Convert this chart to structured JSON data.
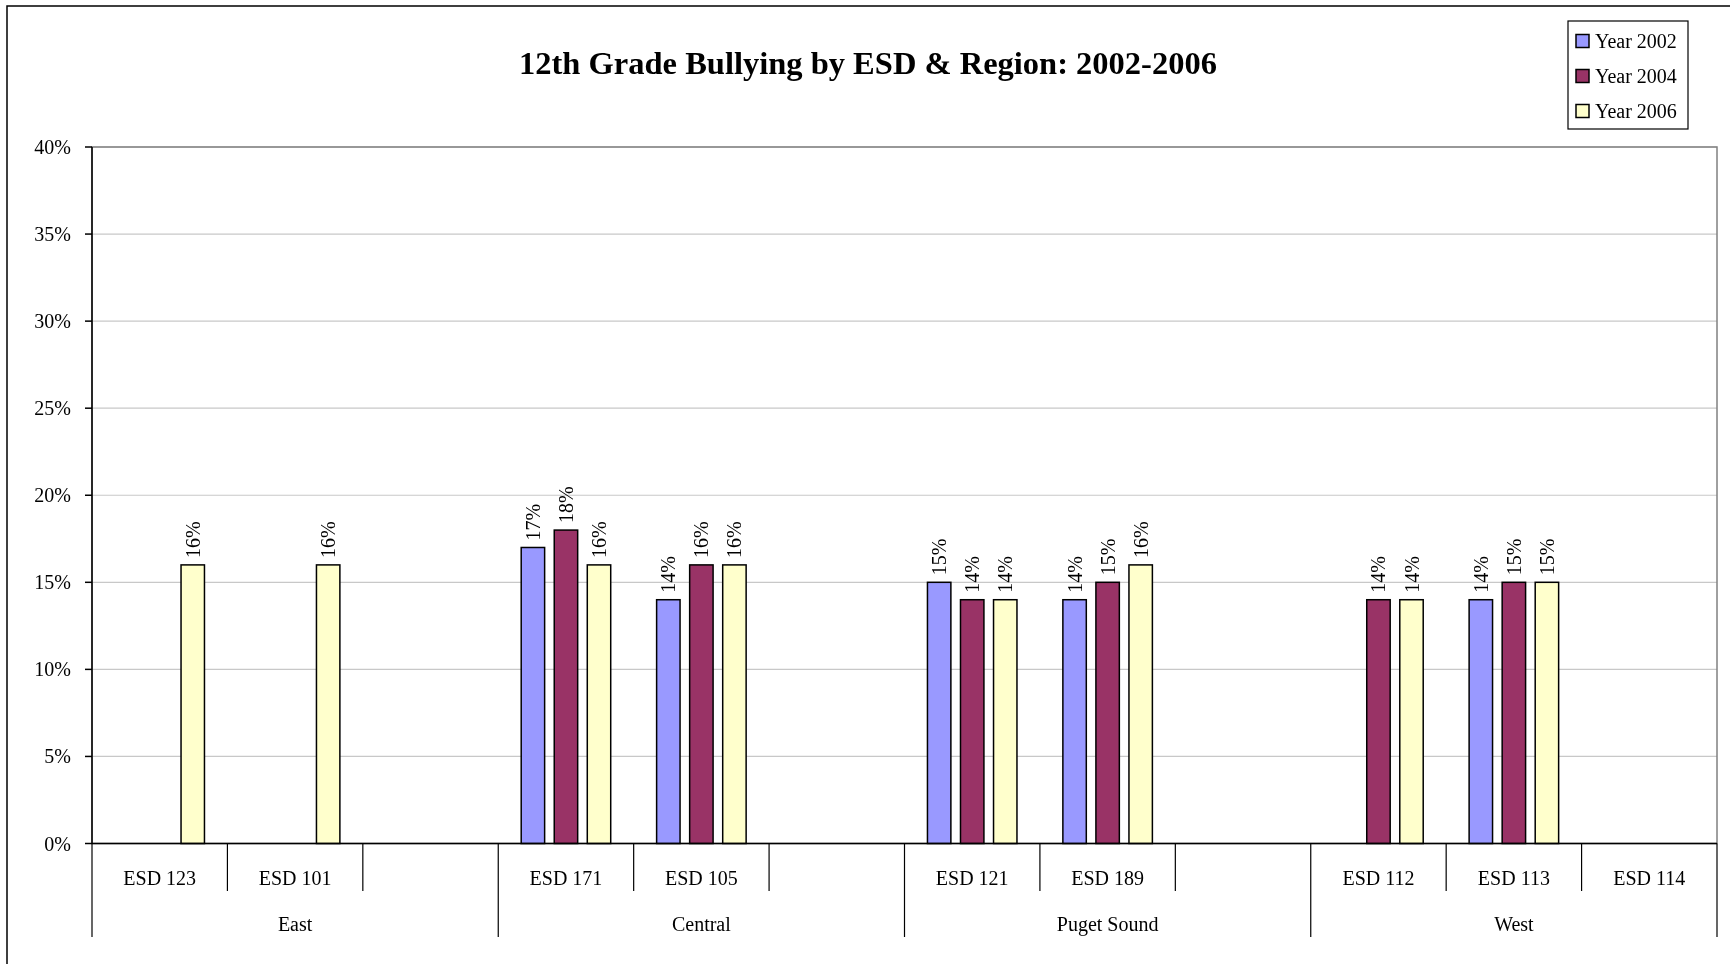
{
  "chart_data": {
    "type": "bar",
    "title": "12th Grade Bullying by ESD & Region: 2002-2006",
    "categories": [
      "ESD 123",
      "ESD 101",
      null,
      "ESD 171",
      "ESD 105",
      null,
      "ESD 121",
      "ESD 189",
      null,
      "ESD 112",
      "ESD 113",
      "ESD 114"
    ],
    "series": [
      {
        "name": "Year 2002",
        "color": "#9999ff",
        "values": [
          null,
          null,
          null,
          17,
          14,
          null,
          15,
          14,
          null,
          null,
          14,
          null
        ],
        "value_labels": [
          null,
          null,
          null,
          "17%",
          "14%",
          null,
          "15%",
          "14%",
          null,
          null,
          "14%",
          null
        ]
      },
      {
        "name": "Year 2004",
        "color": "#993366",
        "values": [
          null,
          null,
          null,
          18,
          16,
          null,
          14,
          15,
          null,
          14,
          15,
          null
        ],
        "value_labels": [
          null,
          null,
          null,
          "18%",
          "16%",
          null,
          "14%",
          "15%",
          null,
          "14%",
          "15%",
          null
        ]
      },
      {
        "name": "Year 2006",
        "color": "#ffffcc",
        "values": [
          16,
          16,
          null,
          16,
          16,
          null,
          14,
          16,
          null,
          14,
          15,
          null
        ],
        "value_labels": [
          "16%",
          "16%",
          null,
          "16%",
          "16%",
          null,
          "14%",
          "16%",
          null,
          "14%",
          "15%",
          null
        ]
      }
    ],
    "ylim": [
      0,
      40
    ],
    "yticks": [
      {
        "value": 0,
        "label": "0%"
      },
      {
        "value": 5,
        "label": "5%"
      },
      {
        "value": 10,
        "label": "10%"
      },
      {
        "value": 15,
        "label": "15%"
      },
      {
        "value": 20,
        "label": "20%"
      },
      {
        "value": 25,
        "label": "25%"
      },
      {
        "value": 30,
        "label": "30%"
      },
      {
        "value": 35,
        "label": "35%"
      },
      {
        "value": 40,
        "label": "40%"
      }
    ],
    "grid": "y",
    "legend": "top right",
    "annotations": [
      "East",
      "Central",
      "Puget Sound",
      "West"
    ]
  }
}
